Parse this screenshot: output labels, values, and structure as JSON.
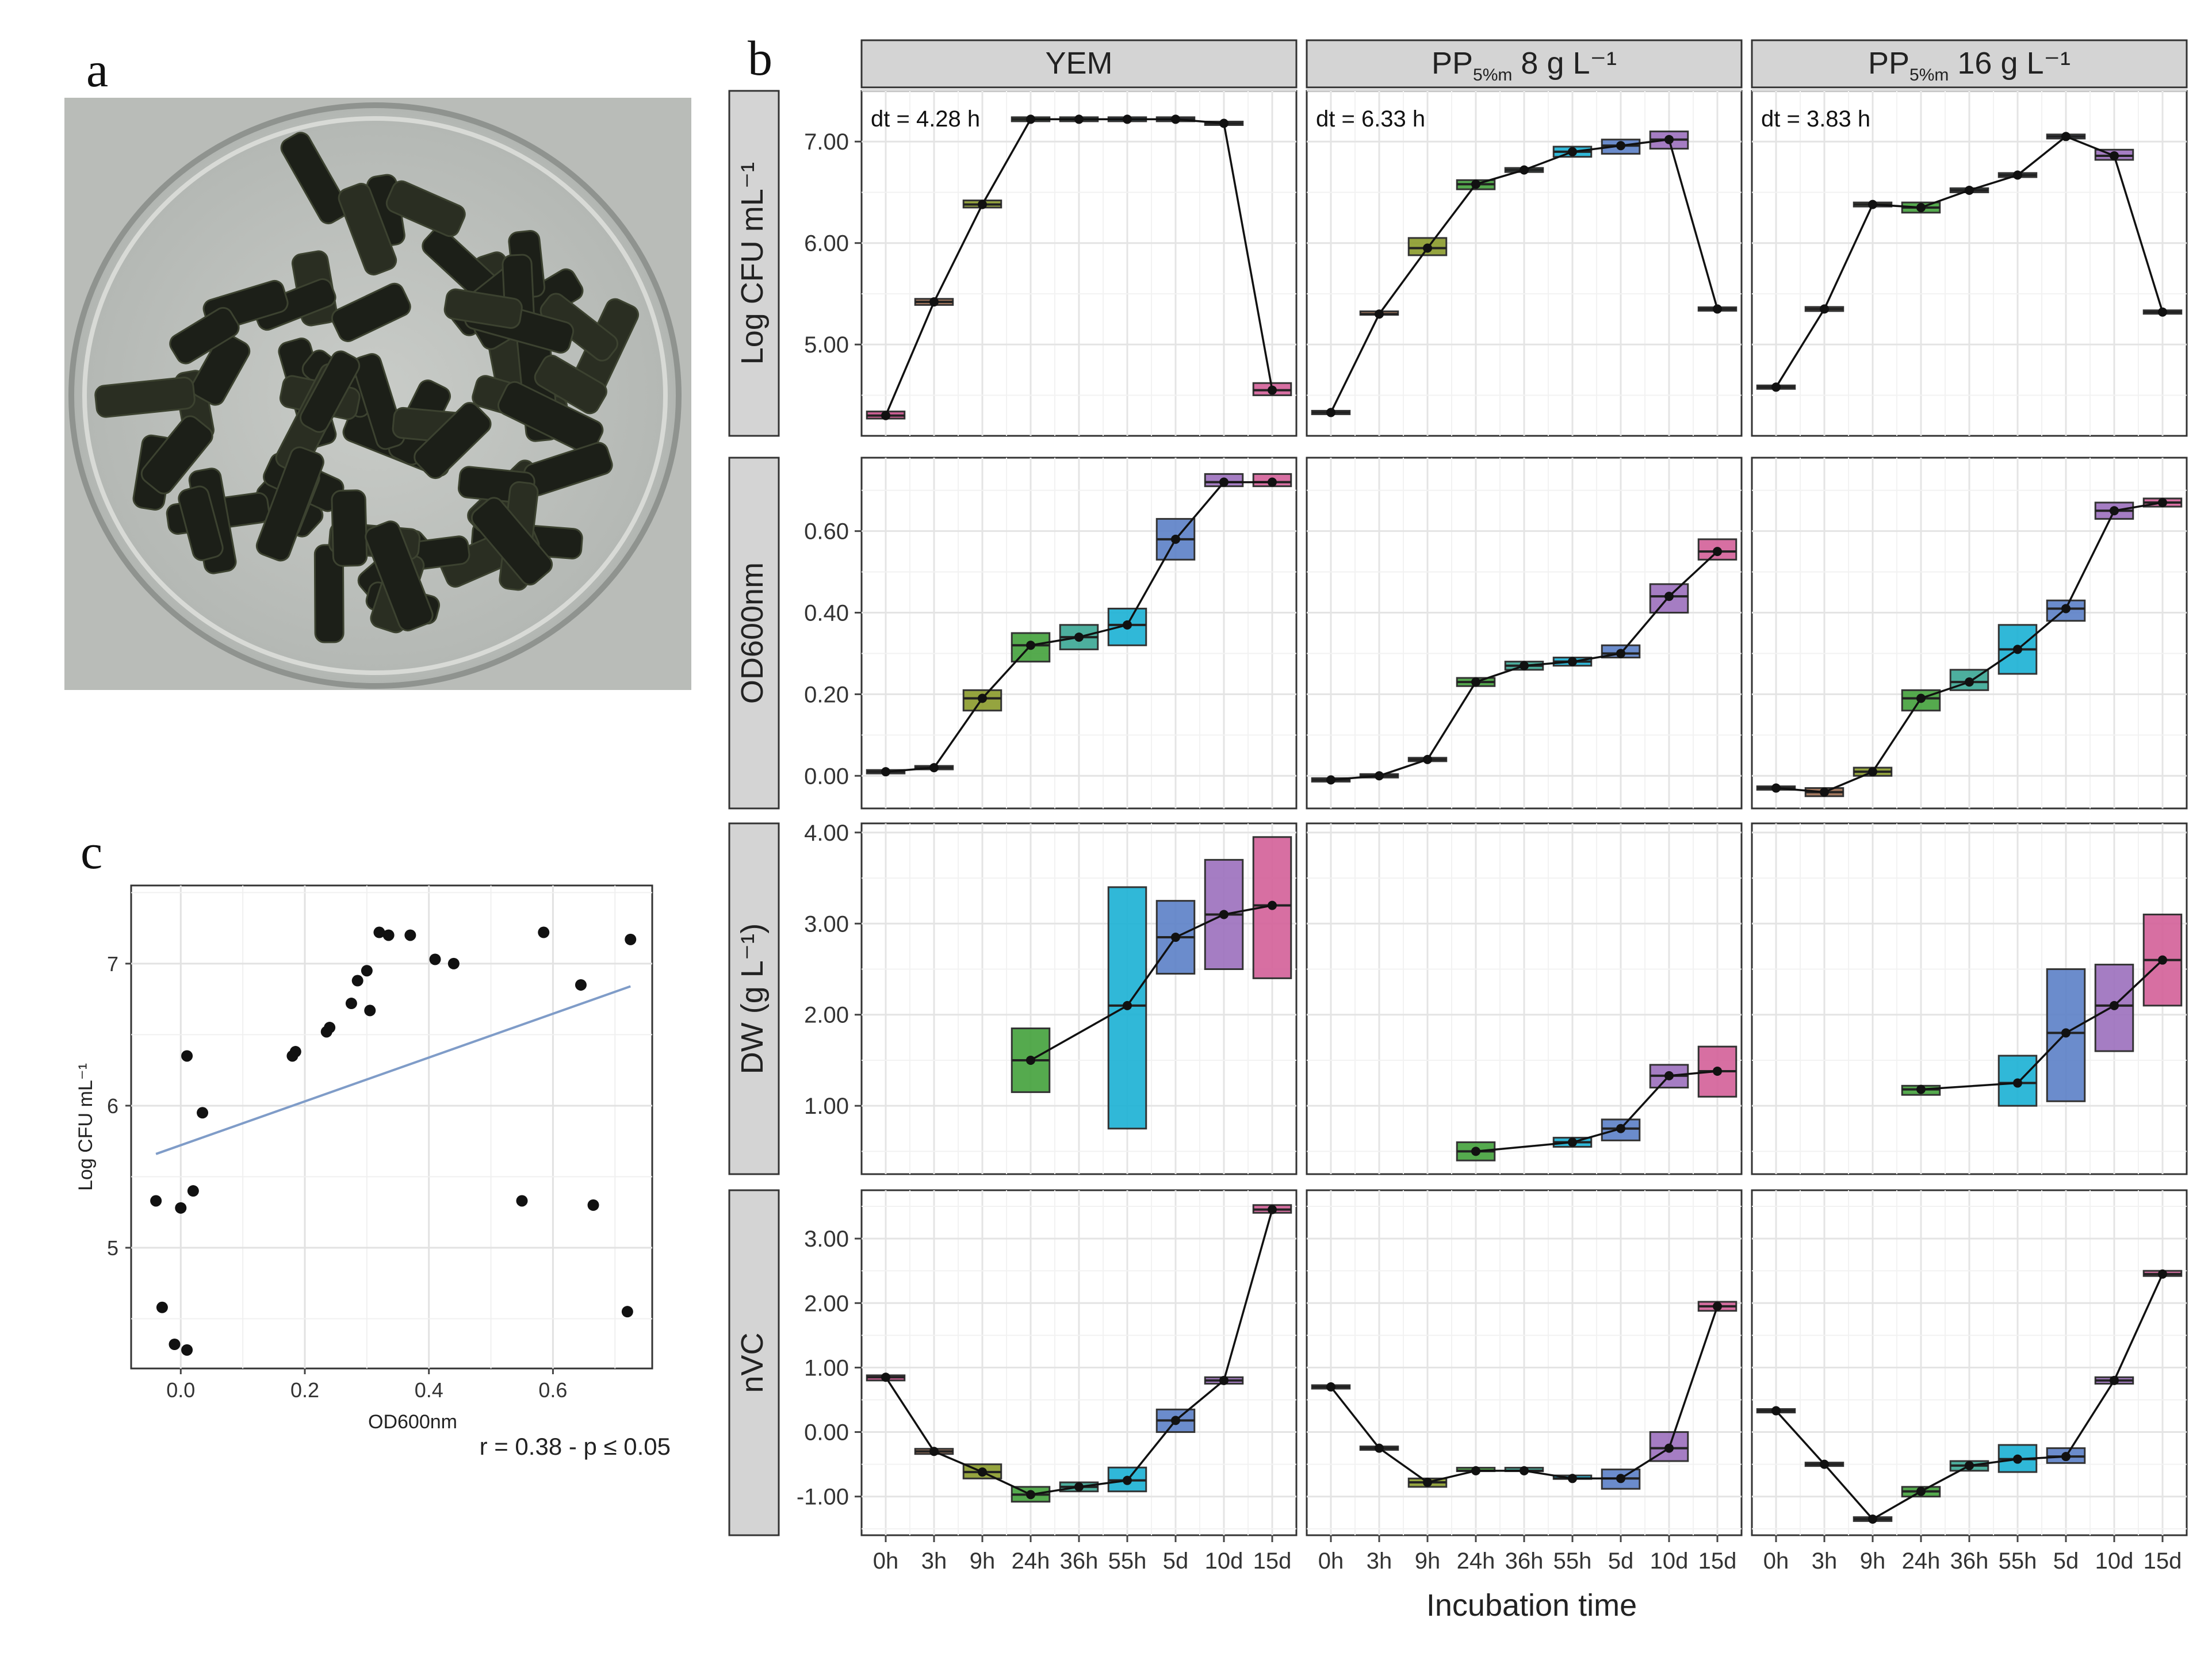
{
  "panel_labels": [
    "a",
    "b",
    "c"
  ],
  "photo": {
    "description_icon": "petri-dish-pellets-photo"
  },
  "panel_b": {
    "facet_columns": [
      {
        "main": "YEM",
        "sub": "",
        "tail": ""
      },
      {
        "main": "PP",
        "sub": "5%m",
        "tail": " 8 g L⁻¹"
      },
      {
        "main": "PP",
        "sub": "5%m",
        "tail": " 16 g L⁻¹"
      }
    ],
    "facet_rows": [
      {
        "label": "Log CFU mL⁻¹"
      },
      {
        "label": "OD600nm"
      },
      {
        "label": "DW (g L⁻¹)"
      },
      {
        "label": "nVC"
      }
    ],
    "x_categories": [
      "0h",
      "3h",
      "9h",
      "24h",
      "36h",
      "55h",
      "5d",
      "10d",
      "15d"
    ],
    "x_title": "Incubation time",
    "dt_labels": [
      "dt = 4.28 h",
      "dt = 6.33 h",
      "dt = 3.83 h"
    ],
    "category_colors": [
      "#c84f8a",
      "#9b6a4e",
      "#8a9a2a",
      "#43a13b",
      "#3aa694",
      "#19b0d4",
      "#5b7fc6",
      "#9b6fbd",
      "#d35f98"
    ]
  },
  "chart_data": [
    {
      "type": "box",
      "panel": "b",
      "facet_row": "Log CFU mL⁻¹",
      "yticks": [
        "5.00",
        "6.00",
        "7.00"
      ],
      "ylim": [
        4.1,
        7.5
      ],
      "series": [
        {
          "name": "YEM",
          "median": [
            4.3,
            5.42,
            6.38,
            7.22,
            7.22,
            7.22,
            7.22,
            7.18,
            4.55
          ],
          "q1": [
            4.27,
            5.39,
            6.35,
            7.2,
            7.2,
            7.2,
            7.2,
            7.18,
            4.5
          ],
          "q3": [
            4.34,
            5.45,
            6.42,
            7.24,
            7.24,
            7.24,
            7.24,
            7.18,
            4.62
          ]
        },
        {
          "name": "PP 8",
          "median": [
            4.33,
            5.3,
            5.95,
            6.58,
            6.72,
            6.9,
            6.96,
            7.02,
            5.35
          ],
          "q1": [
            4.33,
            5.29,
            5.88,
            6.53,
            6.7,
            6.85,
            6.88,
            6.93,
            5.35
          ],
          "q3": [
            4.33,
            5.31,
            6.05,
            6.62,
            6.74,
            6.95,
            7.02,
            7.1,
            5.35
          ]
        },
        {
          "name": "PP 16",
          "median": [
            4.58,
            5.35,
            6.38,
            6.35,
            6.52,
            6.67,
            7.05,
            6.86,
            5.32
          ],
          "q1": [
            4.58,
            5.33,
            6.36,
            6.3,
            6.5,
            6.65,
            7.03,
            6.82,
            5.32
          ],
          "q3": [
            4.58,
            5.37,
            6.4,
            6.4,
            6.54,
            6.69,
            7.07,
            6.92,
            5.32
          ]
        }
      ]
    },
    {
      "type": "box",
      "panel": "b",
      "facet_row": "OD600nm",
      "yticks": [
        "0.00",
        "0.20",
        "0.40",
        "0.60"
      ],
      "ylim": [
        -0.08,
        0.78
      ],
      "series": [
        {
          "name": "YEM",
          "median": [
            0.01,
            0.02,
            0.19,
            0.32,
            0.34,
            0.37,
            0.58,
            0.72,
            0.72
          ],
          "q1": [
            0.01,
            0.02,
            0.16,
            0.28,
            0.31,
            0.32,
            0.53,
            0.71,
            0.71
          ],
          "q3": [
            0.01,
            0.02,
            0.21,
            0.35,
            0.37,
            0.41,
            0.63,
            0.74,
            0.74
          ]
        },
        {
          "name": "PP 8",
          "median": [
            -0.01,
            0.0,
            0.04,
            0.23,
            0.27,
            0.28,
            0.3,
            0.44,
            0.55
          ],
          "q1": [
            -0.01,
            0.0,
            0.04,
            0.22,
            0.26,
            0.27,
            0.29,
            0.4,
            0.53
          ],
          "q3": [
            -0.01,
            0.0,
            0.04,
            0.24,
            0.28,
            0.29,
            0.32,
            0.47,
            0.58
          ]
        },
        {
          "name": "PP 16",
          "median": [
            -0.03,
            -0.04,
            0.01,
            0.19,
            0.23,
            0.31,
            0.41,
            0.65,
            0.67
          ],
          "q1": [
            -0.03,
            -0.05,
            0.0,
            0.16,
            0.21,
            0.25,
            0.38,
            0.63,
            0.66
          ],
          "q3": [
            -0.03,
            -0.03,
            0.02,
            0.21,
            0.26,
            0.37,
            0.43,
            0.67,
            0.68
          ]
        }
      ]
    },
    {
      "type": "box",
      "panel": "b",
      "facet_row": "DW (g L⁻¹)",
      "yticks": [
        "1.00",
        "2.00",
        "3.00",
        "4.00"
      ],
      "ylim": [
        0.25,
        4.1
      ],
      "series": [
        {
          "name": "YEM",
          "median": [
            null,
            null,
            null,
            1.5,
            null,
            2.1,
            2.85,
            3.1,
            3.2
          ],
          "q1": [
            null,
            null,
            null,
            1.15,
            null,
            0.75,
            2.45,
            2.5,
            2.4
          ],
          "q3": [
            null,
            null,
            null,
            1.85,
            null,
            3.4,
            3.25,
            3.7,
            3.95
          ]
        },
        {
          "name": "PP 8",
          "median": [
            null,
            null,
            null,
            0.5,
            null,
            0.6,
            0.75,
            1.33,
            1.38
          ],
          "q1": [
            null,
            null,
            null,
            0.4,
            null,
            0.55,
            0.62,
            1.2,
            1.1
          ],
          "q3": [
            null,
            null,
            null,
            0.6,
            null,
            0.65,
            0.85,
            1.45,
            1.65
          ]
        },
        {
          "name": "PP 16",
          "median": [
            null,
            null,
            null,
            1.18,
            null,
            1.25,
            1.8,
            2.1,
            2.6
          ],
          "q1": [
            null,
            null,
            null,
            1.12,
            null,
            1.0,
            1.05,
            1.6,
            2.1
          ],
          "q3": [
            null,
            null,
            null,
            1.22,
            null,
            1.55,
            2.5,
            2.55,
            3.1
          ]
        }
      ]
    },
    {
      "type": "box",
      "panel": "b",
      "facet_row": "nVC",
      "yticks": [
        "-1.00",
        "0.00",
        "1.00",
        "2.00",
        "3.00"
      ],
      "ylim": [
        -1.6,
        3.75
      ],
      "series": [
        {
          "name": "YEM",
          "median": [
            0.85,
            -0.3,
            -0.62,
            -0.97,
            -0.85,
            -0.75,
            0.18,
            0.8,
            3.45
          ],
          "q1": [
            0.8,
            -0.34,
            -0.72,
            -1.08,
            -0.92,
            -0.92,
            0.0,
            0.75,
            3.4
          ],
          "q3": [
            0.88,
            -0.26,
            -0.5,
            -0.85,
            -0.78,
            -0.55,
            0.35,
            0.85,
            3.52
          ]
        },
        {
          "name": "PP 8",
          "median": [
            0.7,
            -0.25,
            -0.78,
            -0.6,
            -0.6,
            -0.72,
            -0.72,
            -0.25,
            1.95
          ],
          "q1": [
            0.7,
            -0.25,
            -0.85,
            -0.62,
            -0.62,
            -0.74,
            -0.88,
            -0.45,
            1.88
          ],
          "q3": [
            0.7,
            -0.25,
            -0.72,
            -0.58,
            -0.58,
            -0.7,
            -0.58,
            0.0,
            2.02
          ]
        },
        {
          "name": "PP 16",
          "median": [
            0.33,
            -0.5,
            -1.35,
            -0.92,
            -0.52,
            -0.42,
            -0.38,
            0.8,
            2.45
          ],
          "q1": [
            0.33,
            -0.5,
            -1.38,
            -1.0,
            -0.6,
            -0.62,
            -0.48,
            0.75,
            2.42
          ],
          "q3": [
            0.33,
            -0.5,
            -1.32,
            -0.85,
            -0.45,
            -0.2,
            -0.25,
            0.85,
            2.5
          ]
        }
      ]
    },
    {
      "type": "scatter",
      "panel": "c",
      "xticks": [
        "0.0",
        "0.2",
        "0.4",
        "0.6"
      ],
      "yticks": [
        "5",
        "6",
        "7"
      ],
      "xlim": [
        -0.08,
        0.76
      ],
      "ylim": [
        4.15,
        7.55
      ],
      "ylabel": "Log CFU mL⁻¹",
      "xlabel": "OD600nm",
      "annotation": "r = 0.38 - p ≤ 0.05",
      "points": [
        [
          -0.04,
          5.33
        ],
        [
          -0.03,
          4.58
        ],
        [
          -0.01,
          4.32
        ],
        [
          0.0,
          5.28
        ],
        [
          0.01,
          6.35
        ],
        [
          0.01,
          4.28
        ],
        [
          0.02,
          5.4
        ],
        [
          0.035,
          5.95
        ],
        [
          0.18,
          6.35
        ],
        [
          0.185,
          6.38
        ],
        [
          0.235,
          6.52
        ],
        [
          0.24,
          6.55
        ],
        [
          0.275,
          6.72
        ],
        [
          0.285,
          6.88
        ],
        [
          0.3,
          6.95
        ],
        [
          0.305,
          6.67
        ],
        [
          0.32,
          7.22
        ],
        [
          0.335,
          7.2
        ],
        [
          0.37,
          7.2
        ],
        [
          0.41,
          7.03
        ],
        [
          0.44,
          7.0
        ],
        [
          0.55,
          5.33
        ],
        [
          0.585,
          7.22
        ],
        [
          0.645,
          6.85
        ],
        [
          0.665,
          5.3
        ],
        [
          0.72,
          4.55
        ],
        [
          0.725,
          7.17
        ]
      ],
      "trend": {
        "x": [
          -0.04,
          0.725
        ],
        "y": [
          5.66,
          6.84
        ]
      }
    }
  ]
}
